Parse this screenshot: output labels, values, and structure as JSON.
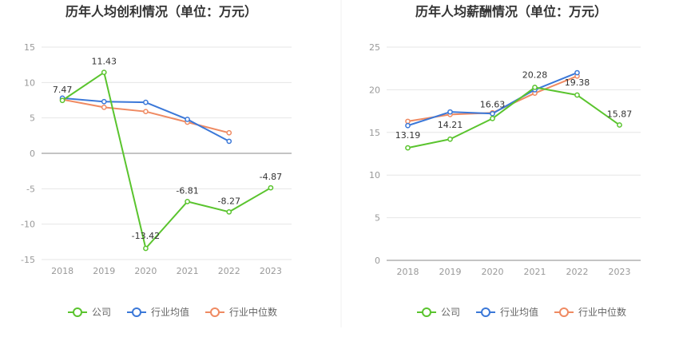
{
  "chart_data": [
    {
      "type": "line",
      "title": "历年人均创利情况（单位：万元）",
      "categories": [
        "2018",
        "2019",
        "2020",
        "2021",
        "2022",
        "2023"
      ],
      "ylim": [
        -15,
        15
      ],
      "yticks": [
        15,
        10,
        5,
        0,
        -5,
        -10,
        -15
      ],
      "series": [
        {
          "name": "公司",
          "color": "#5ac42e",
          "values": [
            7.47,
            11.43,
            -13.42,
            -6.81,
            -8.27,
            -4.87
          ],
          "labels": [
            "7.47",
            "11.43",
            "-13.42",
            "-6.81",
            "-8.27",
            "-4.87"
          ]
        },
        {
          "name": "行业均值",
          "color": "#3b78d8",
          "values": [
            7.8,
            7.3,
            7.2,
            4.8,
            1.7,
            null
          ]
        },
        {
          "name": "行业中位数",
          "color": "#ef8a62",
          "values": [
            7.6,
            6.5,
            5.9,
            4.4,
            2.9,
            null
          ]
        }
      ]
    },
    {
      "type": "line",
      "title": "历年人均薪酬情况（单位：万元）",
      "categories": [
        "2018",
        "2019",
        "2020",
        "2021",
        "2022",
        "2023"
      ],
      "ylim": [
        0,
        25
      ],
      "yticks": [
        25,
        20,
        15,
        10,
        5,
        0
      ],
      "series": [
        {
          "name": "公司",
          "color": "#5ac42e",
          "values": [
            13.19,
            14.21,
            16.63,
            20.28,
            19.38,
            15.87
          ],
          "labels": [
            "13.19",
            "14.21",
            "16.63",
            "20.28",
            "19.38",
            "15.87"
          ]
        },
        {
          "name": "行业均值",
          "color": "#3b78d8",
          "values": [
            15.8,
            17.4,
            17.2,
            20.0,
            22.0,
            null
          ]
        },
        {
          "name": "行业中位数",
          "color": "#ef8a62",
          "values": [
            16.3,
            17.1,
            17.3,
            19.6,
            21.6,
            null
          ]
        }
      ]
    }
  ],
  "legend": [
    "公司",
    "行业均值",
    "行业中位数"
  ]
}
